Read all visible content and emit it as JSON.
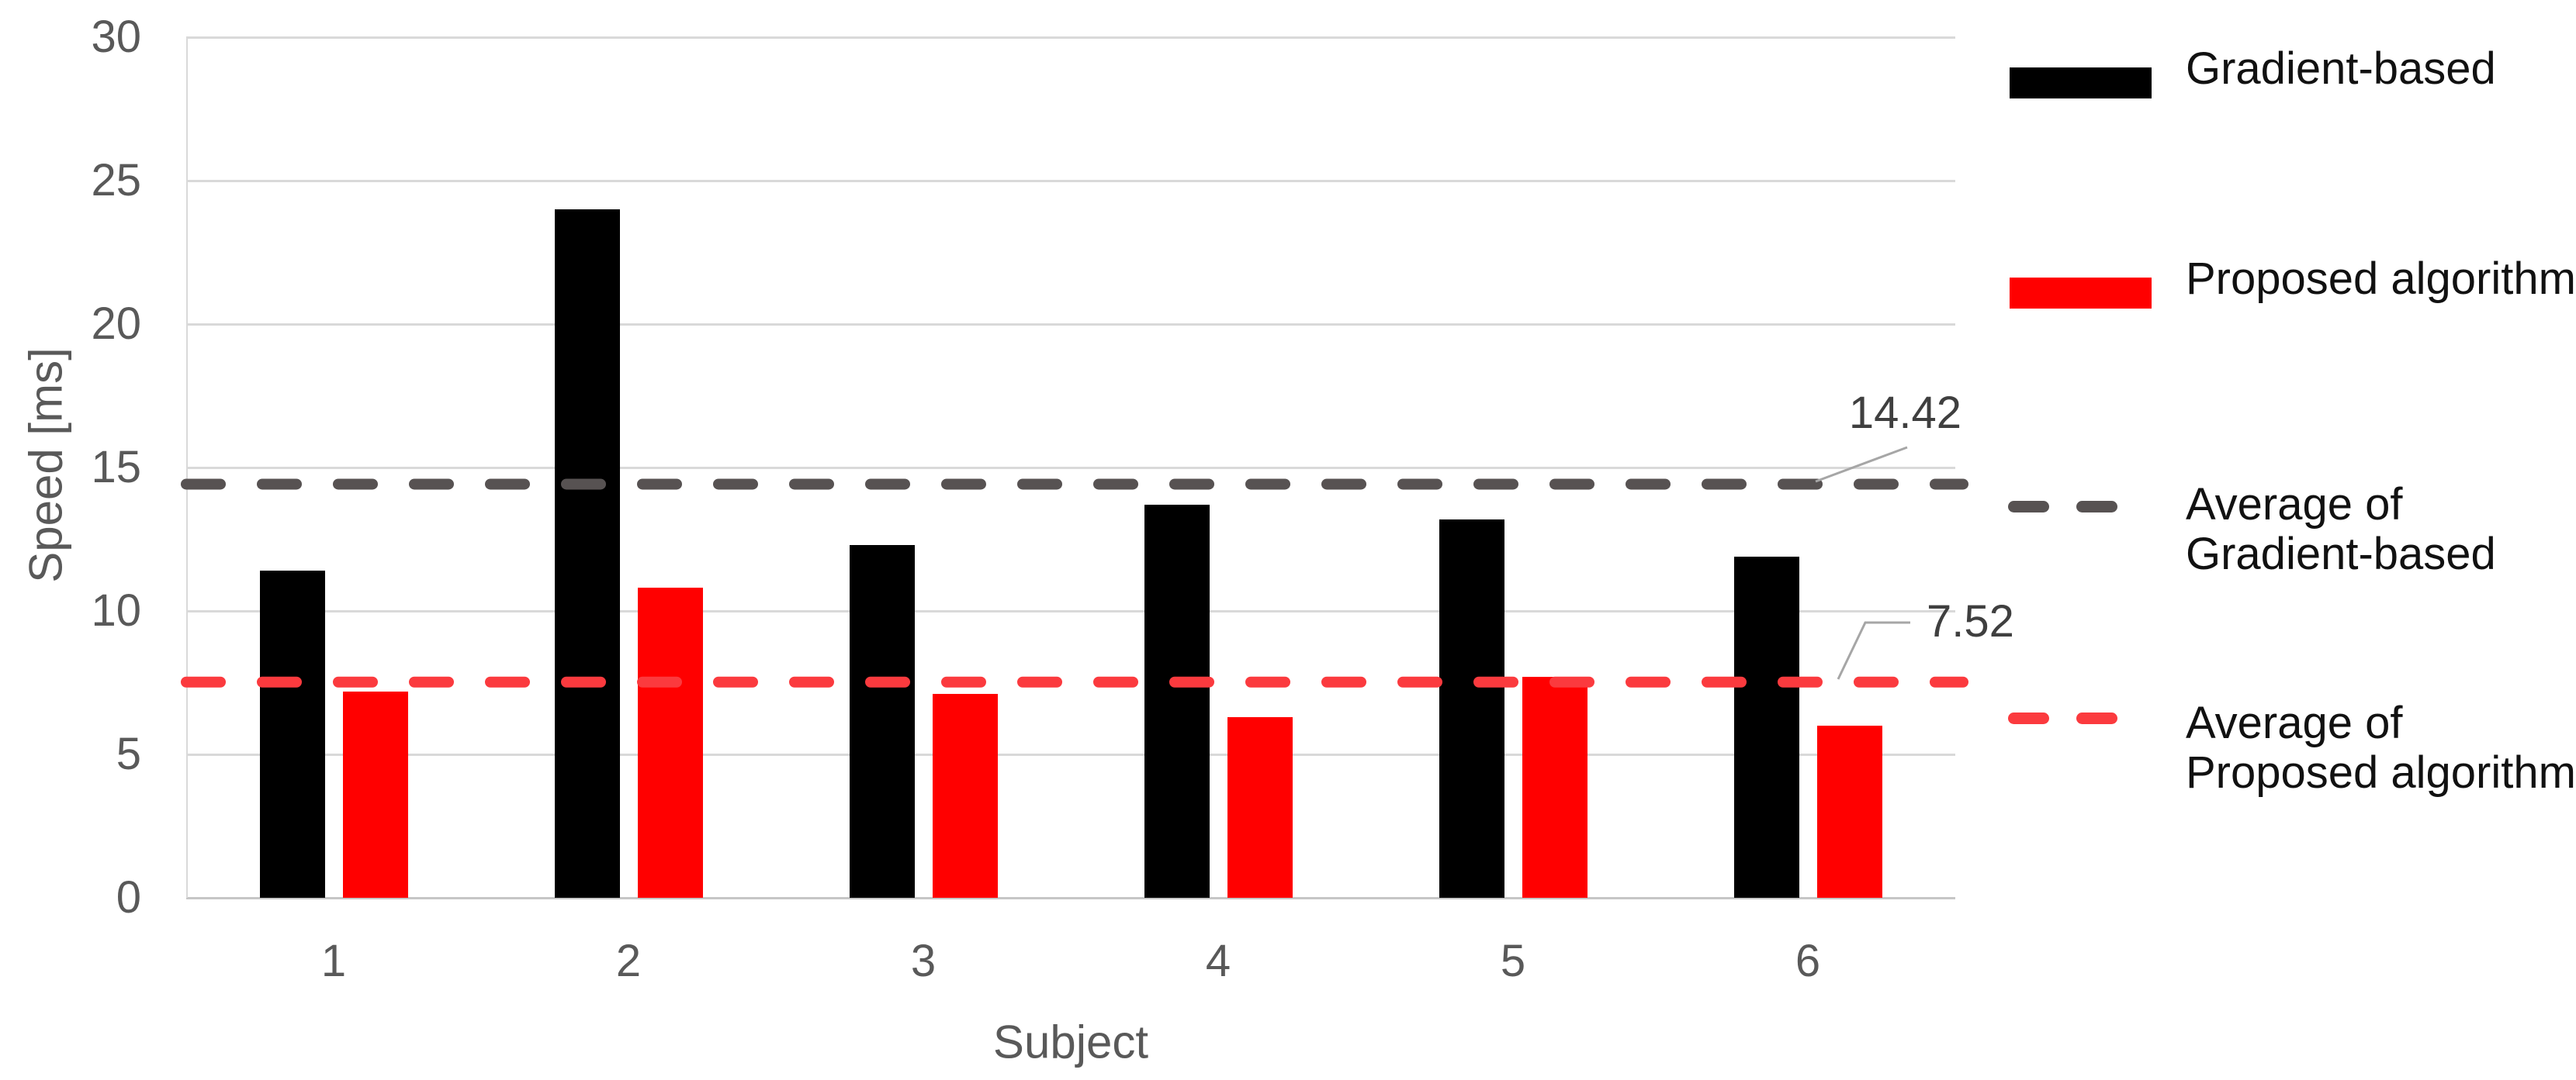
{
  "chart_data": {
    "type": "bar",
    "title": "",
    "xlabel": "Subject",
    "ylabel": "Speed [ms]",
    "categories": [
      "1",
      "2",
      "3",
      "4",
      "5",
      "6"
    ],
    "series": [
      {
        "name": "Gradient-based",
        "color": "#000000",
        "values": [
          11.4,
          24.0,
          12.3,
          13.7,
          13.2,
          11.9
        ]
      },
      {
        "name": "Proposed algorithm",
        "color": "#ff0000",
        "values": [
          7.2,
          10.8,
          7.1,
          6.3,
          7.7,
          6.0
        ]
      }
    ],
    "average_lines": [
      {
        "name": "Average of Gradient-based",
        "value": 14.42,
        "label": "14.42",
        "color": "#575252"
      },
      {
        "name": "Average of Proposed algorithm",
        "value": 7.52,
        "label": "7.52",
        "color": "#fb3a3e"
      }
    ],
    "ylim": [
      0,
      30
    ],
    "yticks": [
      0,
      5,
      10,
      15,
      20,
      25,
      30
    ],
    "grid": true,
    "legend_position": "right"
  },
  "legend": {
    "items": [
      {
        "swatch": "bar",
        "color": "#000000",
        "lines": [
          "Gradient-based"
        ]
      },
      {
        "swatch": "bar",
        "color": "#ff0000",
        "lines": [
          "Proposed algorithm"
        ]
      },
      {
        "swatch": "dash",
        "color": "#575252",
        "lines": [
          "Average of",
          "Gradient-based"
        ]
      },
      {
        "swatch": "dash",
        "color": "#fb3a3e",
        "lines": [
          "Average of",
          "Proposed algorithm"
        ]
      }
    ]
  },
  "colors": {
    "background": "#ffffff",
    "gridline": "#d9d9d9",
    "axis_line": "#c6c6c6",
    "tick_text": "#595959",
    "axis_title_text": "#595959",
    "legend_text": "#111111",
    "annotation_text": "#3f3f3f",
    "leader_line": "#a6a6a6"
  }
}
